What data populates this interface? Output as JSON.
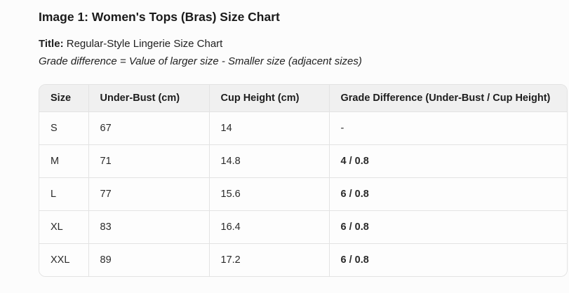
{
  "page": {
    "heading": "Image 1: Women's Tops (Bras) Size Chart",
    "title_label": "Title:",
    "title_text": "Regular-Style Lingerie Size Chart",
    "note": "Grade difference = Value of larger size - Smaller size (adjacent sizes)"
  },
  "table": {
    "columns": [
      "Size",
      "Under-Bust (cm)",
      "Cup Height (cm)",
      "Grade Difference (Under-Bust / Cup Height)"
    ],
    "rows": [
      {
        "size": "S",
        "under_bust": "67",
        "cup_height": "14",
        "grade_difference": "-"
      },
      {
        "size": "M",
        "under_bust": "71",
        "cup_height": "14.8",
        "grade_difference": "4 / 0.8"
      },
      {
        "size": "L",
        "under_bust": "77",
        "cup_height": "15.6",
        "grade_difference": "6 / 0.8"
      },
      {
        "size": "XL",
        "under_bust": "83",
        "cup_height": "16.4",
        "grade_difference": "6 / 0.8"
      },
      {
        "size": "XXL",
        "under_bust": "89",
        "cup_height": "17.2",
        "grade_difference": "6 / 0.8"
      }
    ]
  },
  "colors": {
    "page_bg": "#fcfcfc",
    "header_bg": "#f0f0f0",
    "border": "#e3e3e3",
    "text": "#212121",
    "heading_text": "#1a1a1a"
  }
}
